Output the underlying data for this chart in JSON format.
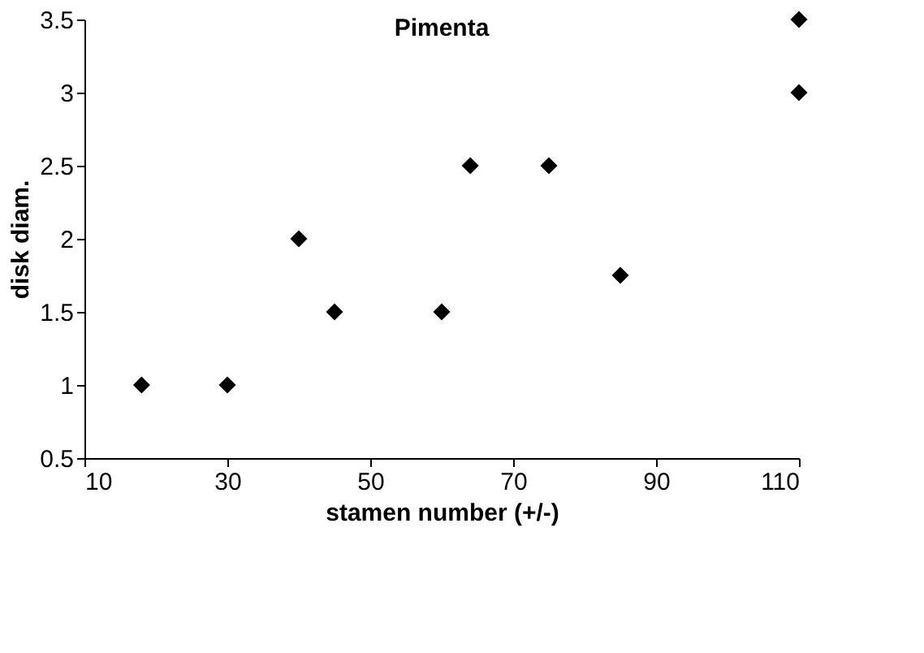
{
  "chart_data": {
    "type": "scatter",
    "title": "Pimenta",
    "xlabel": "stamen number (+/-)",
    "ylabel": "disk diam.",
    "x": [
      18,
      30,
      40,
      45,
      60,
      64,
      75,
      85,
      110,
      110
    ],
    "values": [
      1,
      1,
      2,
      1.5,
      1.5,
      2.5,
      2.5,
      1.75,
      3.5,
      3
    ],
    "color": "#000000",
    "marker": "diamond",
    "grid": false,
    "xlim": [
      10,
      110
    ],
    "xticks": [
      10,
      30,
      50,
      70,
      90,
      110
    ],
    "ylim": [
      0.5,
      3.5
    ],
    "yticks": [
      0.5,
      1,
      1.5,
      2,
      2.5,
      3,
      3.5
    ]
  }
}
